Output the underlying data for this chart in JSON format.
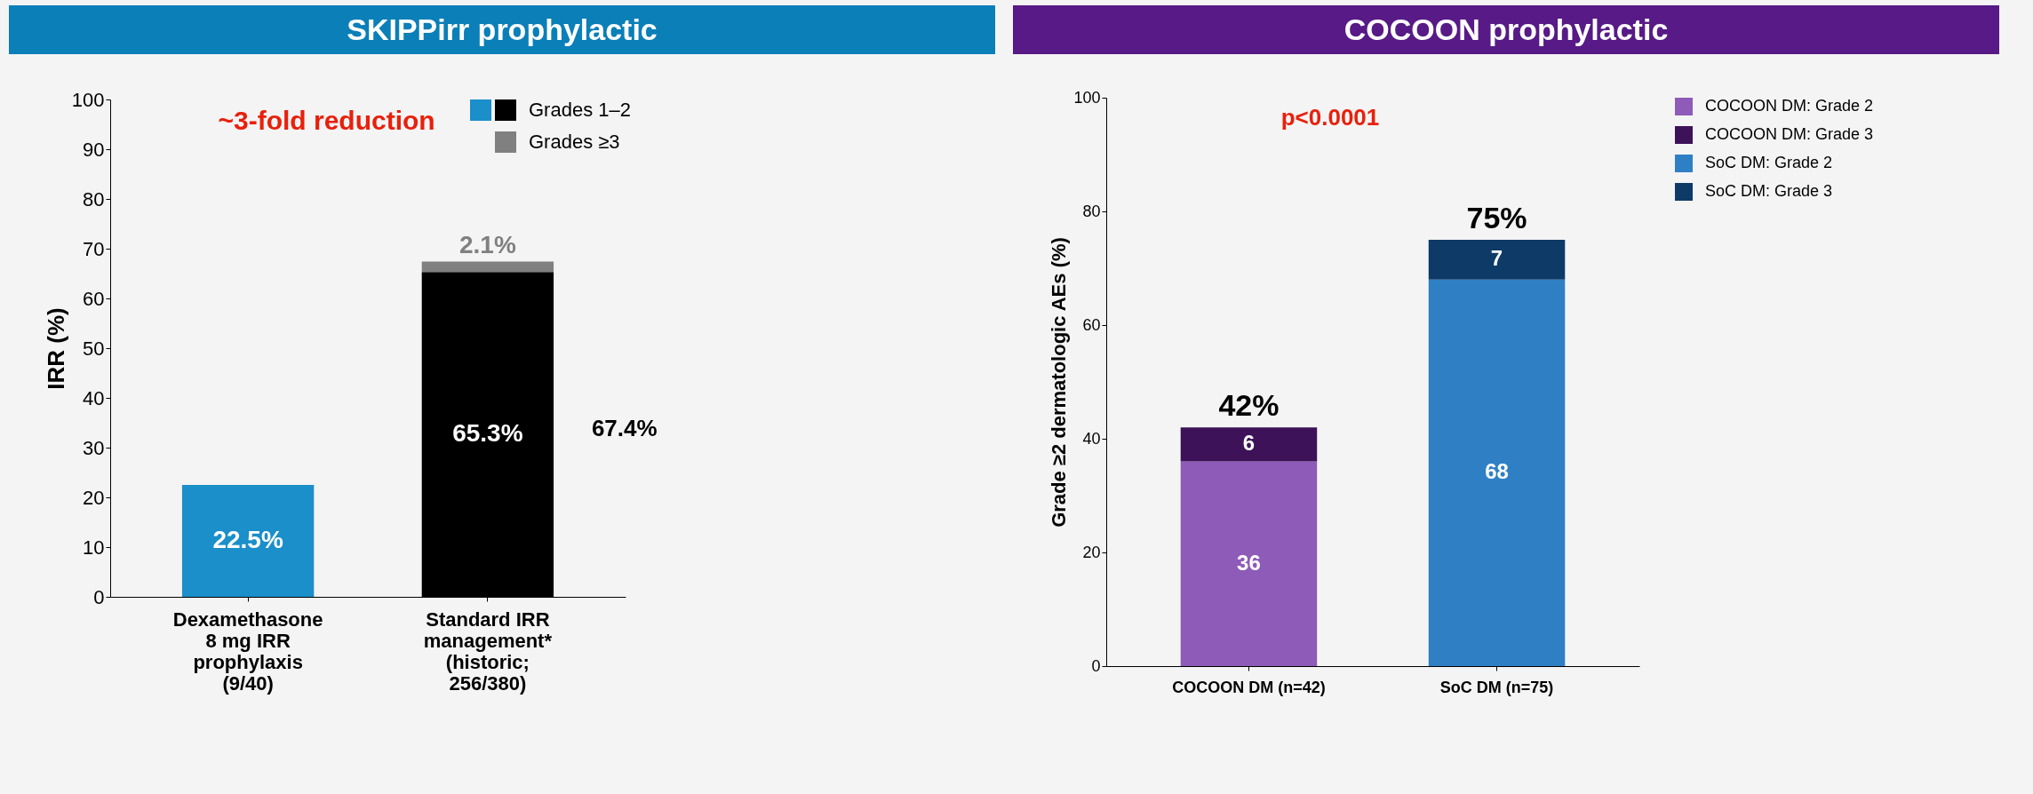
{
  "chart_data": [
    {
      "type": "bar",
      "title": "SKIPPirr prophylactic",
      "ylabel": "IRR (%)",
      "categories": [
        "Dexamethasone\n8 mg IRR\nprophylaxis\n(9/40)",
        "Standard IRR\nmanagement*\n(historic;\n256/380)"
      ],
      "stacked": true,
      "series": [
        {
          "name": "Grades 1–2",
          "colors": [
            "#1a8fc9",
            "#000000"
          ],
          "values": [
            22.5,
            65.3
          ],
          "value_labels": [
            "22.5%",
            "65.3%"
          ]
        },
        {
          "name": "Grades ≥3",
          "colors": [
            null,
            "#808080"
          ],
          "values": [
            null,
            2.1
          ],
          "value_labels": [
            null,
            "2.1%"
          ]
        }
      ],
      "ylim": [
        0,
        100
      ],
      "yticks": [
        0,
        10,
        20,
        30,
        40,
        50,
        60,
        70,
        80,
        90,
        100
      ],
      "legend": "top right",
      "annotations": [
        "~3-fold reduction",
        "67.4%"
      ]
    },
    {
      "type": "bar",
      "title": "COCOON prophylactic",
      "ylabel": "Grade ≥2 dermatologic AEs (%)",
      "categories": [
        "COCOON DM (n=42)",
        "SoC DM (n=75)"
      ],
      "stacked": true,
      "series": [
        {
          "name": "COCOON DM: Grade 2",
          "color": "#8e5bb8",
          "values": [
            36,
            null
          ]
        },
        {
          "name": "COCOON DM: Grade 3",
          "color": "#3d1258",
          "values": [
            6,
            null
          ]
        },
        {
          "name": "SoC DM: Grade 2",
          "color": "#2f7fc4",
          "values": [
            null,
            68
          ]
        },
        {
          "name": "SoC DM: Grade 3",
          "color": "#0d3a66",
          "values": [
            null,
            7
          ]
        }
      ],
      "data_labels": true,
      "totals": [
        "42%",
        "75%"
      ],
      "ylim": [
        0,
        100
      ],
      "yticks": [
        0,
        20,
        40,
        60,
        80,
        100
      ],
      "legend": "right",
      "annotations": [
        "p<0.0001"
      ]
    }
  ]
}
